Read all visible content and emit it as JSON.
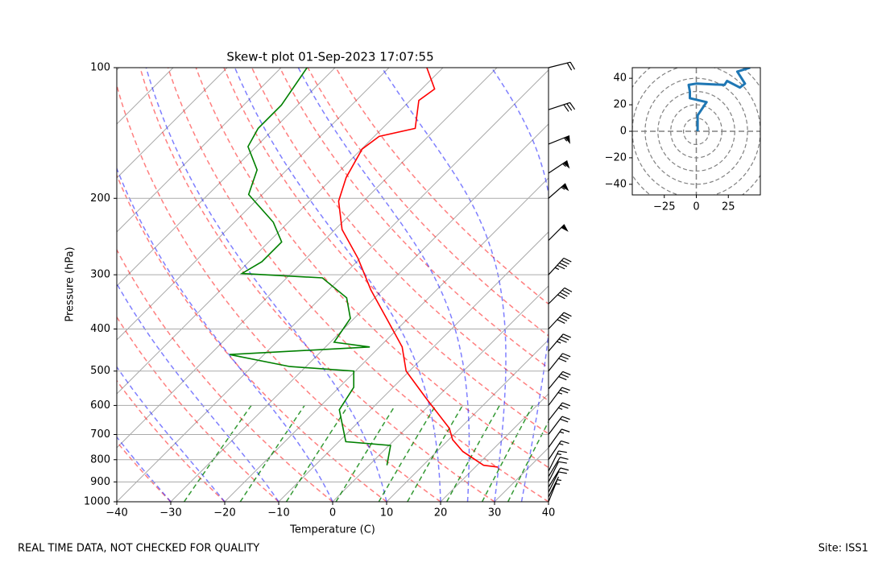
{
  "chart_data": [
    {
      "type": "skewt",
      "title": "Skew-t plot 01-Sep-2023 17:07:55",
      "xlabel": "Temperature (C)",
      "ylabel": "Pressure (hPa)",
      "xlim": [
        -40,
        40
      ],
      "ylim": [
        1000,
        100
      ],
      "y_scale": "log",
      "grid": true,
      "skew_angle": 45,
      "xticks": [
        {
          "value": -40,
          "label": "−40"
        },
        {
          "value": -30,
          "label": "−30"
        },
        {
          "value": -20,
          "label": "−20"
        },
        {
          "value": -10,
          "label": "−10"
        },
        0,
        10,
        20,
        30,
        40
      ],
      "yticks": [
        100,
        200,
        300,
        400,
        500,
        600,
        700,
        800,
        900,
        1000
      ],
      "isotherms": [
        -120,
        -110,
        -100,
        -90,
        -80,
        -70,
        -60,
        -50,
        -40,
        -30,
        -20,
        -10,
        0,
        10,
        20,
        30,
        40
      ],
      "dry_adiabats": [
        -40,
        -30,
        -20,
        -10,
        0,
        10,
        20,
        30,
        40,
        50,
        60,
        70,
        80,
        90,
        100
      ],
      "moist_adiabats": [
        -30,
        -20,
        -10,
        0,
        10,
        20,
        25,
        30,
        35
      ],
      "mixing_ratios": [
        0.4,
        1,
        2,
        4,
        7,
        10,
        16,
        24,
        32
      ],
      "series": [
        {
          "color": "#ff0000",
          "pressure": [
            832,
            824,
            766,
            719,
            677,
            580,
            500,
            440,
            378,
            325,
            275,
            236,
            203,
            179,
            154,
            144,
            138,
            119,
            112,
            100
          ],
          "values": [
            24.2,
            21.2,
            14.8,
            10.7,
            8,
            -1.6,
            -10.6,
            -15.8,
            -24,
            -32.2,
            -40.4,
            -48.7,
            -54.6,
            -57.6,
            -59.9,
            -59.1,
            -53.9,
            -58.4,
            -57.6,
            -63
          ]
        },
        {
          "color": "#008000",
          "pressure": [
            824,
            742,
            727,
            614,
            545,
            500,
            488,
            458,
            440,
            429,
            378,
            339,
            305,
            298,
            280,
            252,
            227,
            196,
            172,
            152,
            138,
            122,
            100
          ],
          "values": [
            3.3,
            0.3,
            -8.7,
            -15.8,
            -17.3,
            -20.3,
            -33,
            -46.4,
            -21.8,
            -29.3,
            -30.7,
            -35.2,
            -43.4,
            -59.1,
            -57.6,
            -57.6,
            -62.8,
            -72.5,
            -75.5,
            -81.5,
            -83,
            -83,
            -85.2
          ]
        }
      ],
      "barbs": {
        "pressure": [
          1000,
          975,
          950,
          925,
          900,
          875,
          850,
          800,
          750,
          700,
          650,
          600,
          550,
          500,
          450,
          400,
          350,
          300,
          250,
          200,
          175,
          150,
          125,
          100
        ],
        "u": [
          2,
          3,
          4,
          5,
          5,
          6,
          6,
          8,
          10,
          12,
          14,
          15,
          18,
          20,
          24,
          28,
          30,
          32,
          35,
          40,
          45,
          50,
          30,
          20
        ],
        "v": [
          5,
          6,
          8,
          8,
          10,
          10,
          12,
          12,
          14,
          16,
          18,
          20,
          22,
          25,
          28,
          30,
          30,
          35,
          35,
          35,
          30,
          20,
          10,
          5
        ]
      }
    },
    {
      "type": "hodograph",
      "color": "#1f77b4",
      "xlim": [
        -50,
        50
      ],
      "ylim": [
        -48,
        48
      ],
      "xticks": [
        {
          "value": -25,
          "label": "−25"
        },
        0,
        25
      ],
      "yticks": [
        {
          "value": -40,
          "label": "−40"
        },
        {
          "value": -20,
          "label": "−20"
        },
        0,
        20,
        40
      ],
      "rings": [
        10,
        20,
        30,
        40,
        50,
        60
      ],
      "x": [
        1,
        1,
        8,
        -5,
        -5,
        -6,
        0,
        22,
        24,
        34,
        38,
        32,
        42
      ],
      "values": [
        0,
        12,
        22,
        25,
        30,
        35,
        36,
        35,
        38,
        33,
        36,
        45,
        48
      ]
    }
  ],
  "footer": {
    "left": "REAL TIME DATA, NOT CHECKED FOR QUALITY",
    "right": "Site: ISS1"
  }
}
